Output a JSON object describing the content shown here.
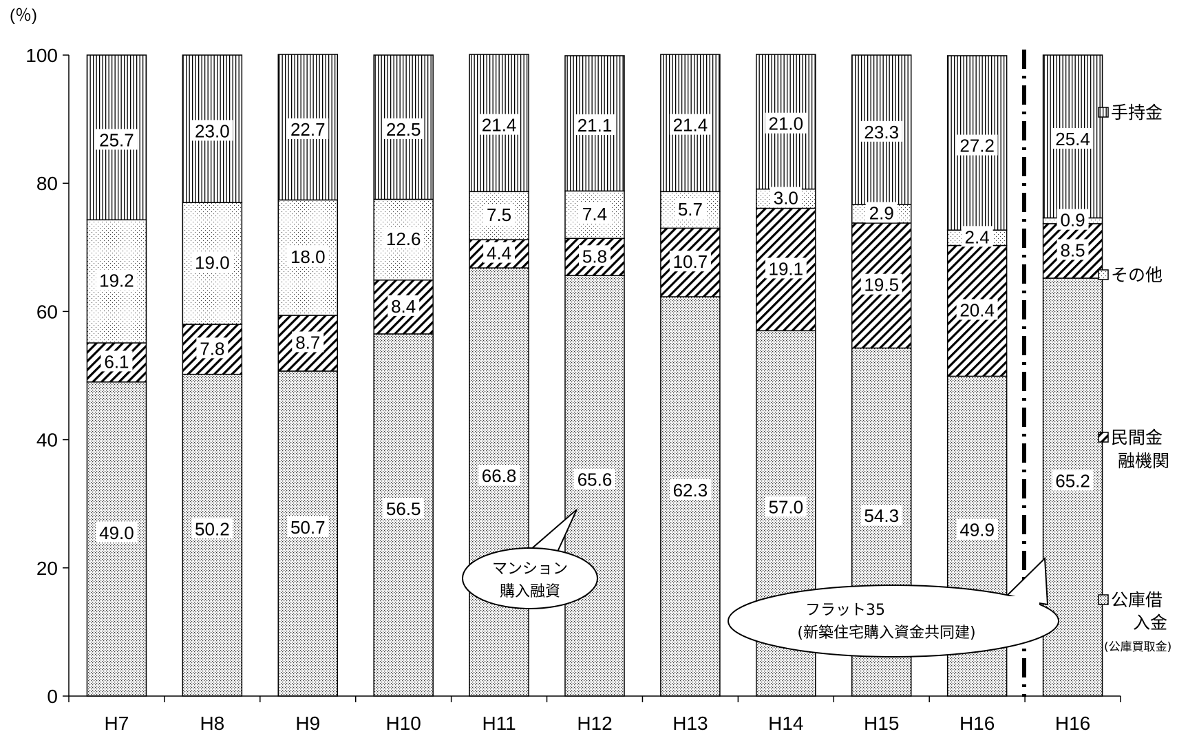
{
  "chart_data": {
    "type": "bar",
    "stacked": true,
    "unit_label": "(％)",
    "ylim": [
      0,
      100
    ],
    "yticks": [
      "0",
      "20",
      "40",
      "60",
      "80",
      "100"
    ],
    "categories": [
      "H7",
      "H8",
      "H9",
      "H10",
      "H11",
      "H12",
      "H13",
      "H14",
      "H15",
      "H16",
      "H16"
    ],
    "series": [
      {
        "key": "koko",
        "name": "公庫借入金",
        "name_line1": "公庫借",
        "name_line2": "入金",
        "sub": "(公庫買取金)",
        "pattern": "dots",
        "values": [
          49.0,
          50.2,
          50.7,
          56.5,
          66.8,
          65.6,
          62.3,
          57.0,
          54.3,
          49.9,
          65.2
        ],
        "labels": [
          "49.0",
          "50.2",
          "50.7",
          "56.5",
          "66.8",
          "65.6",
          "62.3",
          "57.0",
          "54.3",
          "49.9",
          "65.2"
        ]
      },
      {
        "key": "minkan",
        "name": "民間金融機関",
        "name_line1": "民間金",
        "name_line2": "融機関",
        "pattern": "diag",
        "values": [
          6.1,
          7.8,
          8.7,
          8.4,
          4.4,
          5.8,
          10.7,
          19.1,
          19.5,
          20.4,
          8.5
        ],
        "labels": [
          "6.1",
          "7.8",
          "8.7",
          "8.4",
          "4.4",
          "5.8",
          "10.7",
          "19.1",
          "19.5",
          "20.4",
          "8.5"
        ]
      },
      {
        "key": "sonota",
        "name": "その他",
        "pattern": "sparse",
        "values": [
          19.2,
          19.0,
          18.0,
          12.6,
          7.5,
          7.4,
          5.7,
          3.0,
          2.9,
          2.4,
          0.9
        ],
        "labels": [
          "19.2",
          "19.0",
          "18.0",
          "12.6",
          "7.5",
          "7.4",
          "5.7",
          "3.0",
          "2.9",
          "2.4",
          "0.9"
        ]
      },
      {
        "key": "temochi",
        "name": "手持金",
        "pattern": "vlines",
        "values": [
          25.7,
          23.0,
          22.7,
          22.5,
          21.4,
          21.1,
          21.4,
          21.0,
          23.3,
          27.2,
          25.4
        ],
        "labels": [
          "25.7",
          "23.0",
          "22.7",
          "22.5",
          "21.4",
          "21.1",
          "21.4",
          "21.0",
          "23.3",
          "27.2",
          "25.4"
        ]
      }
    ],
    "annotations": [
      {
        "name": "mansion-callout",
        "lines": [
          "マンション",
          "購入融資"
        ]
      },
      {
        "name": "flat35-callout",
        "lines": [
          "フラット35",
          "(新築住宅購入資金共同建)"
        ]
      }
    ],
    "grid": false,
    "legend_position": "right"
  }
}
